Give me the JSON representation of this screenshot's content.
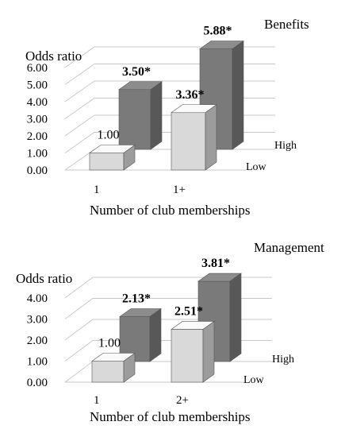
{
  "chart_data": [
    {
      "type": "bar",
      "title": "Benefits",
      "ylabel": "Odds ratio",
      "xlabel": "Number of club memberships",
      "categories": [
        "1",
        "1+"
      ],
      "depth_series": [
        "High",
        "Low"
      ],
      "y_ticks": [
        "0.00",
        "1.00",
        "2.00",
        "3.00",
        "4.00",
        "5.00",
        "6.00"
      ],
      "ylim": [
        0,
        6
      ],
      "series": [
        {
          "name": "Low",
          "values": [
            1.0,
            3.36
          ],
          "labels": [
            "1.00",
            "3.36*"
          ],
          "bold": [
            false,
            true
          ],
          "color": "#d9d9d9"
        },
        {
          "name": "High",
          "values": [
            3.5,
            5.88
          ],
          "labels": [
            "3.50*",
            "5.88*"
          ],
          "bold": [
            true,
            true
          ],
          "color": "#7a7a7a"
        }
      ]
    },
    {
      "type": "bar",
      "title": "Management",
      "ylabel": "Odds ratio",
      "xlabel": "Number of club memberships",
      "categories": [
        "1",
        "2+"
      ],
      "depth_series": [
        "High",
        "Low"
      ],
      "y_ticks": [
        "0.00",
        "1.00",
        "2.00",
        "3.00",
        "4.00"
      ],
      "ylim": [
        0,
        4
      ],
      "series": [
        {
          "name": "Low",
          "values": [
            1.0,
            2.51
          ],
          "labels": [
            "1.00",
            "2.51*"
          ],
          "bold": [
            false,
            true
          ],
          "color": "#d9d9d9"
        },
        {
          "name": "High",
          "values": [
            2.13,
            3.81
          ],
          "labels": [
            "2.13*",
            "3.81*"
          ],
          "bold": [
            true,
            true
          ],
          "color": "#7a7a7a"
        }
      ]
    }
  ]
}
